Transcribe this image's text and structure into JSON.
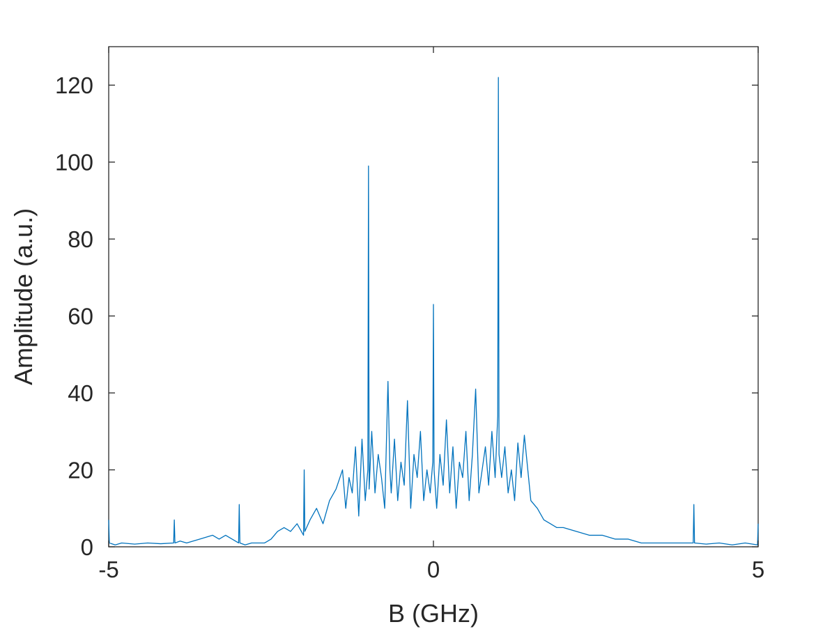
{
  "chart_data": {
    "type": "line",
    "xlabel": "B (GHz)",
    "ylabel": "Amplitude (a.u.)",
    "xlim": [
      -5,
      5
    ],
    "ylim": [
      0,
      130
    ],
    "xticks": [
      -5,
      0,
      5
    ],
    "xtick_labels": [
      "-5",
      "0",
      "5"
    ],
    "yticks": [
      0,
      20,
      40,
      60,
      80,
      100,
      120
    ],
    "ytick_labels": [
      "0",
      "20",
      "40",
      "60",
      "80",
      "100",
      "120"
    ],
    "grid": false,
    "legend": "none",
    "line_color": "#0072bd",
    "series": [
      {
        "x": [
          -5.0,
          -4.99,
          -4.9,
          -4.8,
          -4.6,
          -4.4,
          -4.2,
          -4.0,
          -3.99,
          -3.98,
          -3.9,
          -3.8,
          -3.6,
          -3.4,
          -3.3,
          -3.2,
          -3.0,
          -2.99,
          -2.98,
          -2.9,
          -2.8,
          -2.6,
          -2.5,
          -2.4,
          -2.3,
          -2.2,
          -2.1,
          -2.0,
          -1.99,
          -1.98,
          -1.9,
          -1.8,
          -1.7,
          -1.6,
          -1.5,
          -1.4,
          -1.35,
          -1.3,
          -1.25,
          -1.2,
          -1.15,
          -1.1,
          -1.05,
          -1.01,
          -1.0,
          -0.99,
          -0.95,
          -0.9,
          -0.85,
          -0.8,
          -0.75,
          -0.7,
          -0.67,
          -0.65,
          -0.6,
          -0.55,
          -0.5,
          -0.45,
          -0.4,
          -0.35,
          -0.3,
          -0.25,
          -0.2,
          -0.15,
          -0.1,
          -0.05,
          -0.01,
          0.0,
          0.01,
          0.05,
          0.1,
          0.15,
          0.2,
          0.25,
          0.3,
          0.35,
          0.4,
          0.45,
          0.5,
          0.55,
          0.6,
          0.65,
          0.7,
          0.75,
          0.8,
          0.85,
          0.9,
          0.95,
          0.99,
          1.0,
          1.01,
          1.05,
          1.1,
          1.15,
          1.2,
          1.25,
          1.3,
          1.35,
          1.4,
          1.5,
          1.6,
          1.7,
          1.8,
          1.9,
          2.0,
          2.2,
          2.4,
          2.6,
          2.8,
          3.0,
          3.2,
          3.4,
          3.6,
          3.8,
          4.0,
          4.01,
          4.02,
          4.2,
          4.4,
          4.6,
          4.8,
          4.99,
          5.0
        ],
        "y": [
          7,
          1,
          0.5,
          1,
          0.7,
          1,
          0.8,
          1,
          7,
          1,
          1.5,
          1,
          2,
          3,
          2,
          3,
          1,
          11,
          1,
          0.5,
          1,
          1,
          2,
          4,
          5,
          4,
          6,
          3,
          20,
          4,
          7,
          10,
          6,
          12,
          15,
          20,
          10,
          18,
          14,
          26,
          8,
          28,
          12,
          20,
          99,
          15,
          30,
          14,
          24,
          18,
          10,
          43,
          20,
          14,
          28,
          12,
          22,
          16,
          38,
          10,
          24,
          18,
          30,
          12,
          20,
          14,
          22,
          63,
          20,
          10,
          24,
          16,
          33,
          14,
          26,
          10,
          22,
          18,
          30,
          12,
          24,
          41,
          14,
          20,
          26,
          16,
          30,
          18,
          34,
          122,
          24,
          18,
          26,
          14,
          20,
          12,
          27,
          18,
          29,
          12,
          10,
          7,
          6,
          5,
          5,
          4,
          3,
          3,
          2,
          2,
          1,
          1,
          1,
          1,
          1,
          11,
          1,
          0.7,
          1,
          0.5,
          1,
          0.5,
          6
        ]
      }
    ]
  }
}
